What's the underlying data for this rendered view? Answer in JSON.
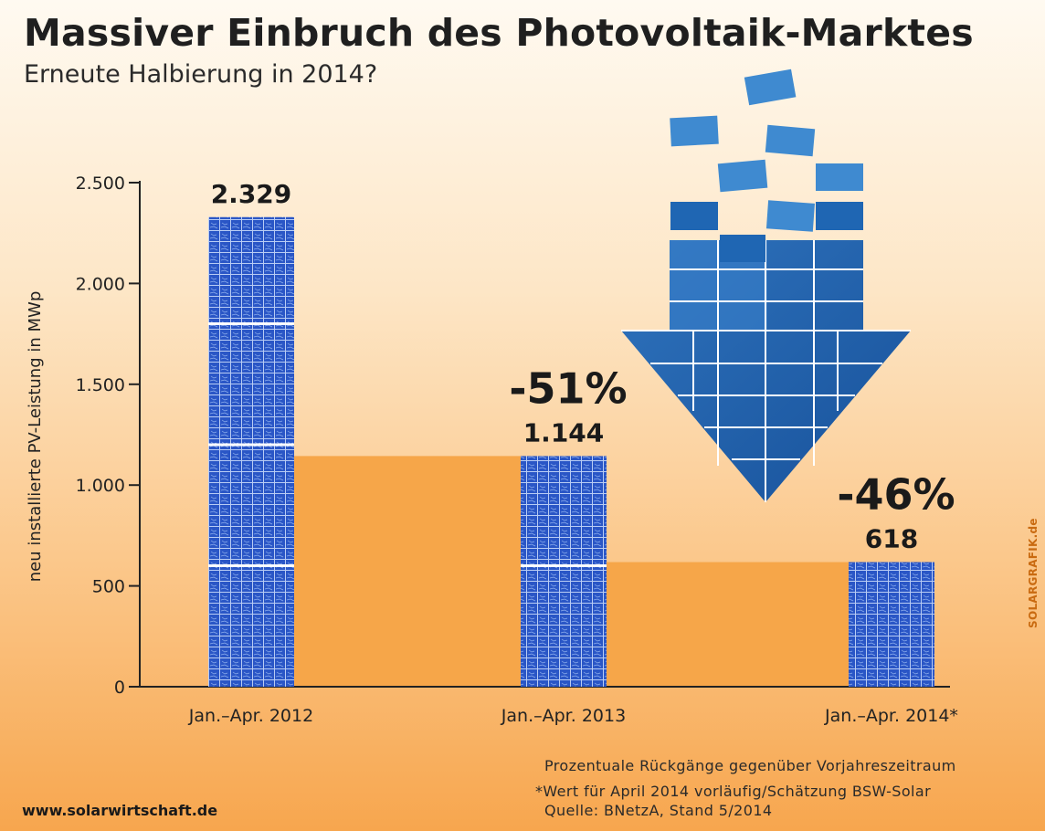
{
  "header": {
    "title": "Massiver Einbruch des Photovoltaik-Marktes",
    "subtitle": "Erneute Halbierung in 2014?"
  },
  "chart_data": {
    "type": "bar",
    "title": "Massiver Einbruch des Photovoltaik-Marktes",
    "subtitle": "Erneute Halbierung in 2014?",
    "xlabel": "",
    "ylabel": "neu installierte PV-Leistung in MWp",
    "ylim": [
      0,
      2500
    ],
    "yticks": [
      0,
      500,
      1000,
      1500,
      2000,
      2500
    ],
    "ytick_labels": [
      "0",
      "500",
      "1.000",
      "1.500",
      "2.000",
      "2.500"
    ],
    "categories": [
      "Jan.–Apr. 2012",
      "Jan.–Apr. 2013",
      "Jan.–Apr. 2014*"
    ],
    "values": [
      2329,
      1144,
      618
    ],
    "value_labels": [
      "2.329",
      "1.144",
      "618"
    ],
    "change_labels": [
      "",
      "-51%",
      "-46%"
    ],
    "colors": {
      "bar": "#2a56c6",
      "cell_line": "#ffffff",
      "connector": "#f6a649",
      "arrow_dark": "#1a5aa6",
      "arrow_light": "#3f86cc"
    },
    "grid": false,
    "legend": "none"
  },
  "footer": {
    "note_decline": "Prozentuale Rückgänge gegenüber Vorjahreszeitraum",
    "note_estimate": "*Wert für April 2014 vorläufig/Schätzung BSW-Solar",
    "note_source": "Quelle: BNetzA, Stand 5/2014",
    "website": "www.solarwirtschaft.de",
    "credit": "SOLARGRAFIK.de"
  }
}
